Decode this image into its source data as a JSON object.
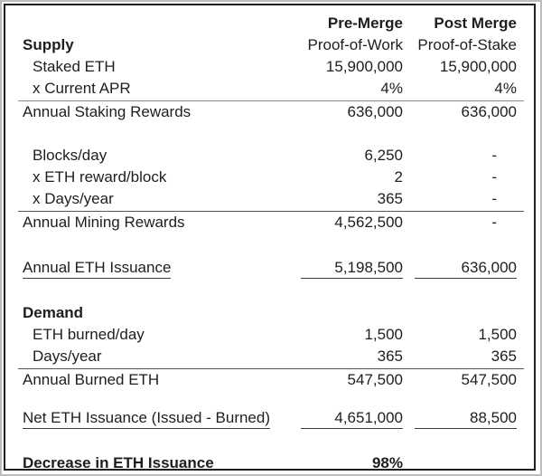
{
  "table": {
    "header": {
      "pre_title": "Pre-Merge",
      "post_title": "Post Merge",
      "pre_subtitle": "Proof-of-Work",
      "post_subtitle": "Proof-of-Stake"
    },
    "rows": [
      {
        "label": "Supply",
        "pre": "Proof-of-Work",
        "post": "Proof-of-Stake"
      },
      {
        "label": "Staked ETH",
        "pre": "15,900,000",
        "post": "15,900,000"
      },
      {
        "label": "x Current APR",
        "pre": "4%",
        "post": "4%"
      },
      {
        "label": "Annual Staking Rewards",
        "pre": "636,000",
        "post": "636,000"
      },
      {
        "label": "Blocks/day",
        "pre": "6,250",
        "post": "-"
      },
      {
        "label": "x ETH reward/block",
        "pre": "2",
        "post": "-"
      },
      {
        "label": "x Days/year",
        "pre": "365",
        "post": "-"
      },
      {
        "label": "Annual Mining Rewards",
        "pre": "4,562,500",
        "post": "-"
      },
      {
        "label": "Annual ETH Issuance",
        "pre": "5,198,500",
        "post": "636,000"
      },
      {
        "label": "Demand",
        "pre": "",
        "post": ""
      },
      {
        "label": "ETH burned/day",
        "pre": "1,500",
        "post": "1,500"
      },
      {
        "label": "Days/year",
        "pre": "365",
        "post": "365"
      },
      {
        "label": "Annual Burned ETH",
        "pre": "547,500",
        "post": "547,500"
      },
      {
        "label": "Net ETH Issuance (Issued - Burned)",
        "pre": "4,651,000",
        "post": "88,500"
      },
      {
        "label": "Decrease in ETH Issuance",
        "pre": "98%",
        "post": ""
      }
    ],
    "colors": {
      "text": "#1e1e1e",
      "frame_border": "#1f1f1f",
      "rule": "#55565a"
    }
  }
}
